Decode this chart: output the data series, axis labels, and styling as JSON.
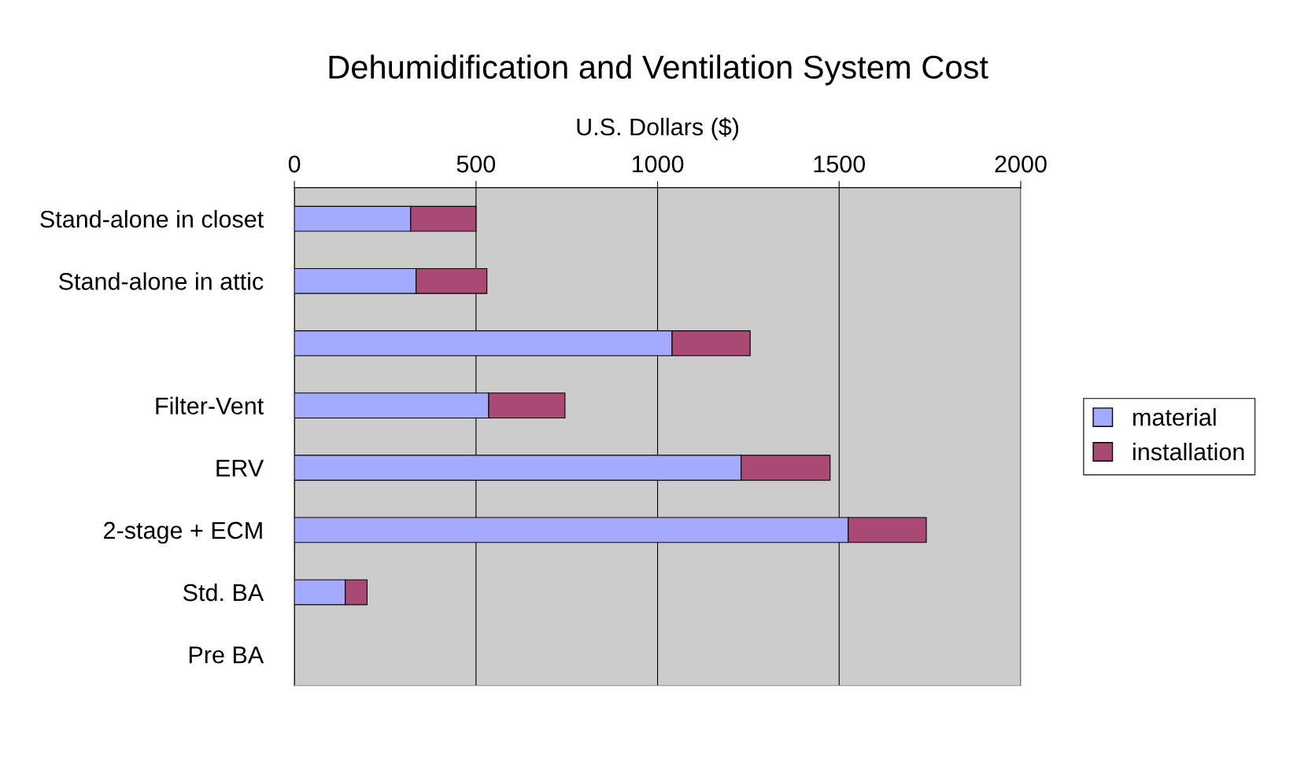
{
  "chart_data": {
    "type": "bar",
    "orientation": "horizontal",
    "stacked": true,
    "title": "Dehumidification and Ventilation System Cost",
    "xlabel": "U.S. Dollars ($)",
    "categories": [
      "Stand-alone in closet",
      "Stand-alone in attic",
      null,
      "Filter-Vent",
      "ERV",
      "2-stage + ECM",
      "Std. BA",
      "Pre BA"
    ],
    "series": [
      {
        "name": "material",
        "color": "#a6aaff",
        "values": [
          320,
          335,
          1040,
          535,
          1230,
          1525,
          140,
          null
        ]
      },
      {
        "name": "installation",
        "color": "#a94a74",
        "values": [
          180,
          195,
          215,
          210,
          245,
          215,
          60,
          null
        ]
      }
    ],
    "xlim": [
      0,
      2000
    ],
    "xticks": [
      0,
      500,
      1000,
      1500,
      2000
    ],
    "grid": "x",
    "legend": "right"
  }
}
